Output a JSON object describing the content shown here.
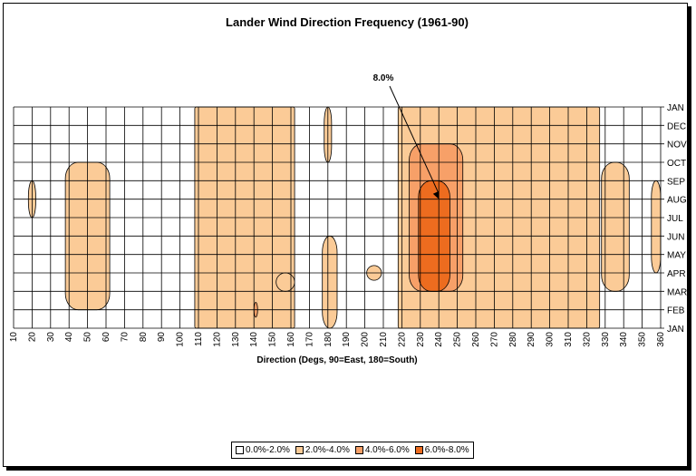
{
  "chart_data": {
    "type": "heatmap",
    "title": "Lander Wind Direction Frequency (1961-90)",
    "xlabel": "Direction (Degs, 90=East, 180=South)",
    "x_ticks": [
      10,
      20,
      30,
      40,
      50,
      60,
      70,
      80,
      90,
      100,
      110,
      120,
      130,
      140,
      150,
      160,
      170,
      180,
      190,
      200,
      210,
      220,
      230,
      240,
      250,
      260,
      270,
      280,
      290,
      300,
      310,
      320,
      330,
      340,
      350,
      360
    ],
    "xlim": [
      10,
      360
    ],
    "y_ticks": [
      "JAN",
      "FEB",
      "MAR",
      "APR",
      "MAY",
      "JUN",
      "JUL",
      "AUG",
      "SEP",
      "OCT",
      "NOV",
      "DEC",
      "JAN"
    ],
    "annotation": {
      "text": "8.0%",
      "x": 240,
      "y": "AUG"
    },
    "legend": [
      {
        "label": "0.0%-2.0%",
        "color": "#ffffff"
      },
      {
        "label": "2.0%-4.0%",
        "color": "#fbcb97"
      },
      {
        "label": "4.0%-6.0%",
        "color": "#f7a068"
      },
      {
        "label": "6.0%-8.0%",
        "color": "#ed6c1f"
      }
    ],
    "regions": [
      {
        "band": "2.0%-4.0%",
        "dir": [
          18,
          22
        ],
        "months": [
          "JUL",
          "SEP"
        ]
      },
      {
        "band": "2.0%-4.0%",
        "dir": [
          38,
          62
        ],
        "months": [
          "FEB",
          "OCT"
        ]
      },
      {
        "band": "2.0%-4.0%",
        "dir": [
          108,
          162
        ],
        "months": [
          "JAN",
          "JAN"
        ]
      },
      {
        "band": "2.0%-4.0%",
        "dir": [
          152,
          162
        ],
        "months": [
          "MAR",
          "APR"
        ]
      },
      {
        "band": "2.0%-4.0%",
        "dir": [
          177,
          185
        ],
        "months": [
          "JAN",
          "JUN"
        ]
      },
      {
        "band": "2.0%-4.0%",
        "dir": [
          178,
          182
        ],
        "months": [
          "OCT",
          "JAN"
        ]
      },
      {
        "band": "2.0%-4.0%",
        "dir": [
          201,
          209
        ],
        "months": [
          "APR",
          "APR"
        ]
      },
      {
        "band": "2.0%-4.0%",
        "dir": [
          218,
          327
        ],
        "months": [
          "JAN",
          "JAN"
        ]
      },
      {
        "band": "2.0%-4.0%",
        "dir": [
          328,
          343
        ],
        "months": [
          "MAR",
          "OCT"
        ]
      },
      {
        "band": "2.0%-4.0%",
        "dir": [
          355,
          360
        ],
        "months": [
          "APR",
          "SEP"
        ]
      },
      {
        "band": "4.0%-6.0%",
        "dir": [
          224,
          253
        ],
        "months": [
          "MAR",
          "NOV"
        ]
      },
      {
        "band": "4.0%-6.0%",
        "dir": [
          140,
          142
        ],
        "months": [
          "FEB",
          "FEB"
        ]
      },
      {
        "band": "6.0%-8.0%",
        "dir": [
          229,
          246
        ],
        "months": [
          "MAR",
          "SEP"
        ]
      }
    ]
  }
}
